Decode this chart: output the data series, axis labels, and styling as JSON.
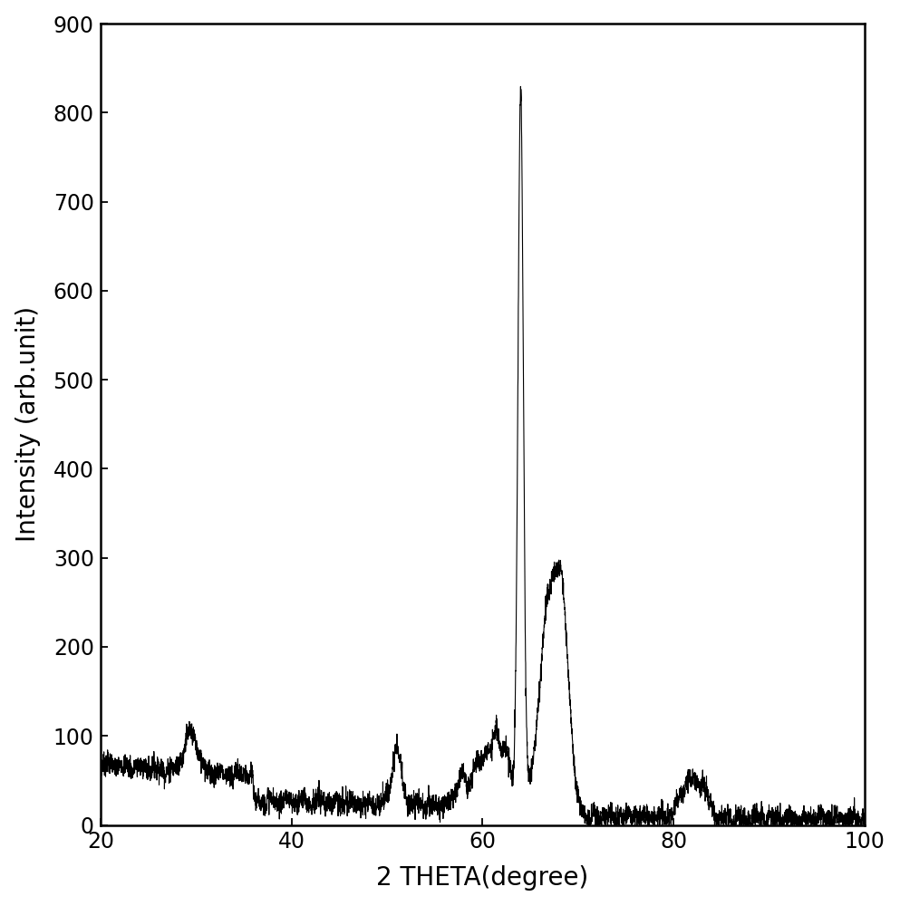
{
  "xlabel": "2 THETA(degree)",
  "ylabel": "Intensity (arb.unit)",
  "xlim": [
    20,
    100
  ],
  "ylim": [
    0,
    900
  ],
  "xticks": [
    20,
    40,
    60,
    80,
    100
  ],
  "yticks": [
    0,
    100,
    200,
    300,
    400,
    500,
    600,
    700,
    800,
    900
  ],
  "line_color": "#000000",
  "line_width": 0.8,
  "background_color": "#ffffff",
  "figsize": [
    9.93,
    10.0
  ],
  "dpi": 100
}
